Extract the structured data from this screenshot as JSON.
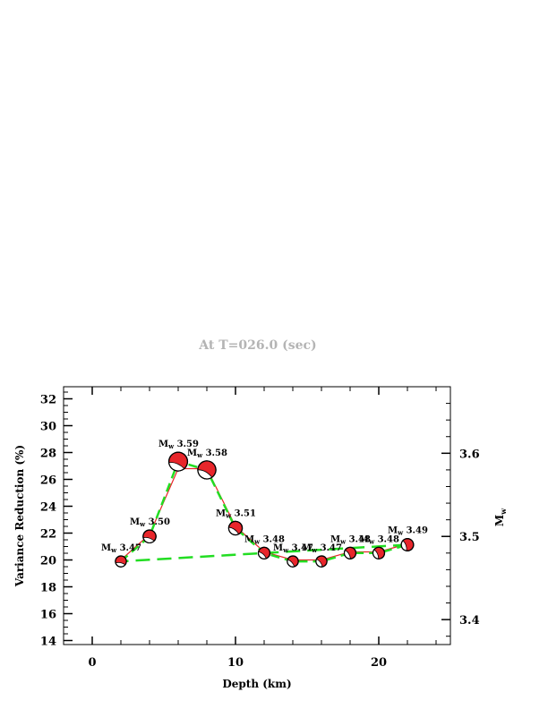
{
  "title": "At T=026.0 (sec)",
  "chart_data": {
    "type": "line",
    "xlabel": "Depth (km)",
    "ylabel": "Variance Reduction (%)",
    "ylabel_right": "M",
    "ylabel_right_sub": "w",
    "xlim": [
      -2,
      25
    ],
    "ylim": [
      13.7,
      32.9
    ],
    "y2lim": [
      3.37,
      3.68
    ],
    "x_ticks": [
      "0",
      "10",
      "20"
    ],
    "y_ticks": [
      "14",
      "16",
      "18",
      "20",
      "22",
      "24",
      "26",
      "28",
      "30",
      "32"
    ],
    "y2_ticks": [
      "3.4",
      "3.5",
      "3.6"
    ],
    "grid": false,
    "series": [
      {
        "role": "variance_reduction",
        "color": "#e8262b",
        "x": [
          2,
          4,
          6,
          8,
          10,
          12,
          14,
          16,
          18,
          20,
          22
        ],
        "values": [
          20.0,
          21.9,
          26.8,
          26.8,
          22.5,
          20.6,
          20.0,
          20.0,
          20.6,
          20.6,
          21.2
        ]
      },
      {
        "role": "moment_magnitude",
        "color": "#22dd22",
        "x": [
          2,
          4,
          6,
          8,
          10,
          12,
          14,
          16,
          18,
          20,
          22
        ],
        "values": [
          3.47,
          3.5,
          3.59,
          3.58,
          3.51,
          3.48,
          3.47,
          3.47,
          3.48,
          3.48,
          3.49
        ]
      }
    ],
    "annotations": [
      {
        "x": 2,
        "label": "M",
        "sub": "w",
        "value": "3.47"
      },
      {
        "x": 4,
        "label": "M",
        "sub": "w",
        "value": "3.50"
      },
      {
        "x": 6,
        "label": "M",
        "sub": "w",
        "value": "3.59"
      },
      {
        "x": 8,
        "label": "M",
        "sub": "w",
        "value": "3.58"
      },
      {
        "x": 10,
        "label": "M",
        "sub": "w",
        "value": "3.51"
      },
      {
        "x": 12,
        "label": "M",
        "sub": "w",
        "value": "3.48"
      },
      {
        "x": 14,
        "label": "M",
        "sub": "w",
        "value": "3.47"
      },
      {
        "x": 16,
        "label": "M",
        "sub": "w",
        "value": "3.47"
      },
      {
        "x": 18,
        "label": "M",
        "sub": "w",
        "value": "3.48"
      },
      {
        "x": 20,
        "label": "M",
        "sub": "w",
        "value": "3.48"
      },
      {
        "x": 22,
        "label": "M",
        "sub": "w",
        "value": "3.49"
      }
    ],
    "mechanism_colors": {
      "fill": "#e8262b",
      "background": "#ffffff",
      "outline": "#000000"
    }
  }
}
